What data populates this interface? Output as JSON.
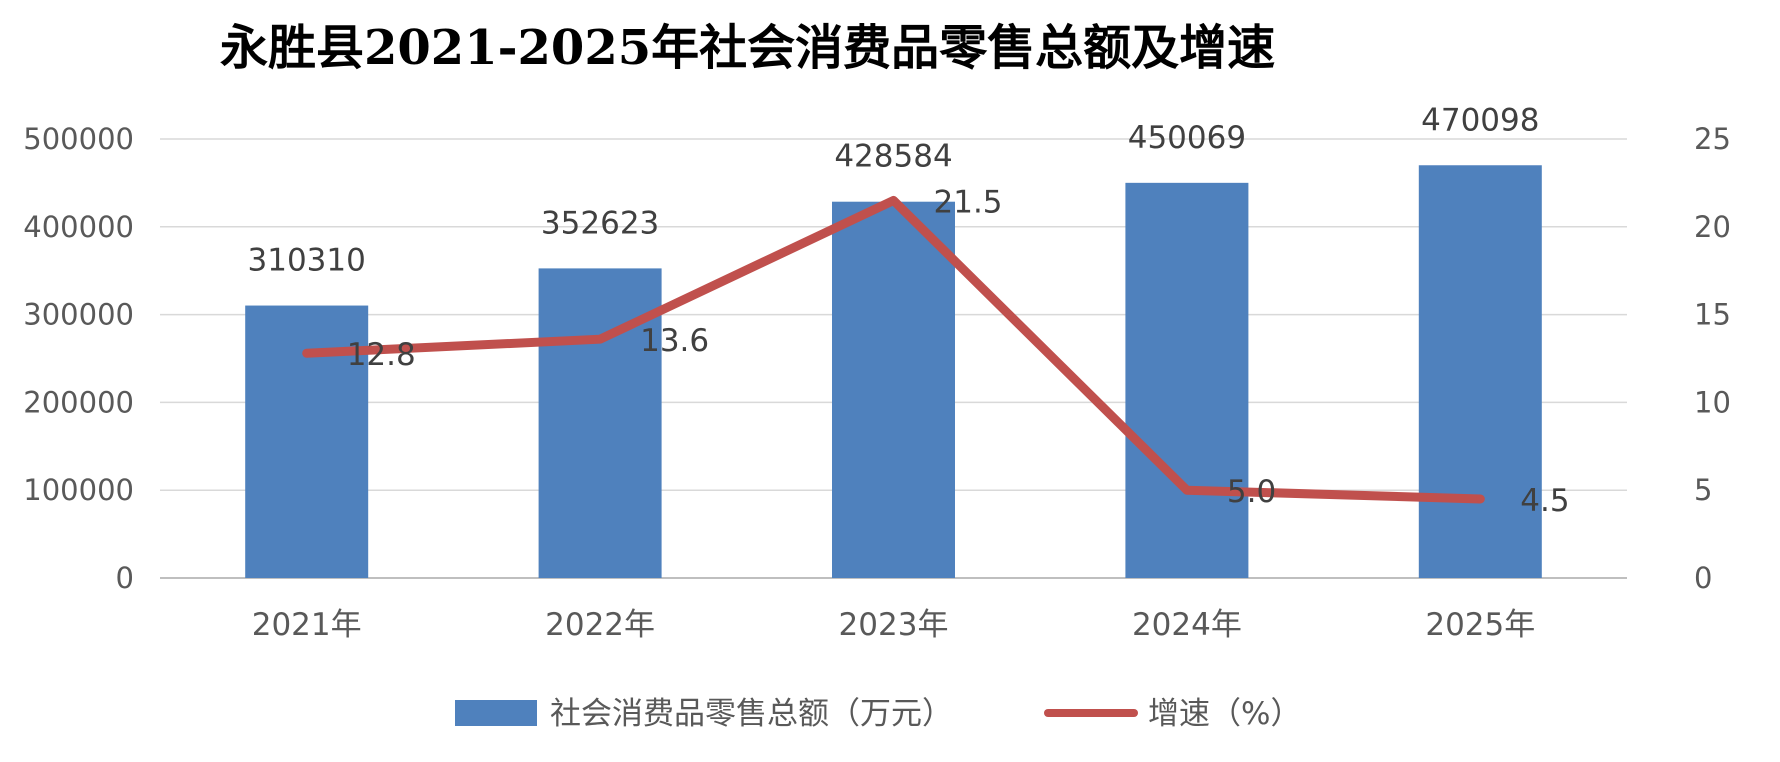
{
  "chart_data": {
    "type": "bar",
    "title": "永胜县2021-2025年社会消费品零售总额及增速",
    "categories": [
      "2021年",
      "2022年",
      "2023年",
      "2024年",
      "2025年"
    ],
    "series": [
      {
        "name": "社会消费品零售总额（万元）",
        "type": "bar",
        "axis": "left",
        "color": "#4F81BD",
        "values": [
          310310,
          352623,
          428584,
          450069,
          470098
        ]
      },
      {
        "name": "增速（%）",
        "type": "line",
        "axis": "right",
        "color": "#C0504D",
        "values": [
          12.8,
          13.6,
          21.5,
          5.0,
          4.5
        ]
      }
    ],
    "y_left": {
      "min": 0,
      "max": 500000,
      "step": 100000,
      "ticks": [
        "0",
        "100000",
        "200000",
        "300000",
        "400000",
        "500000"
      ]
    },
    "y_right": {
      "min": 0,
      "max": 25,
      "step": 5,
      "ticks": [
        "0",
        "5",
        "10",
        "15",
        "20",
        "25"
      ]
    },
    "bar_labels": [
      "310310",
      "352623",
      "428584",
      "450069",
      "470098"
    ],
    "line_labels": [
      "12.8",
      "13.6",
      "21.5",
      "5.0",
      "4.5"
    ],
    "grid": true,
    "legend_position": "bottom"
  }
}
